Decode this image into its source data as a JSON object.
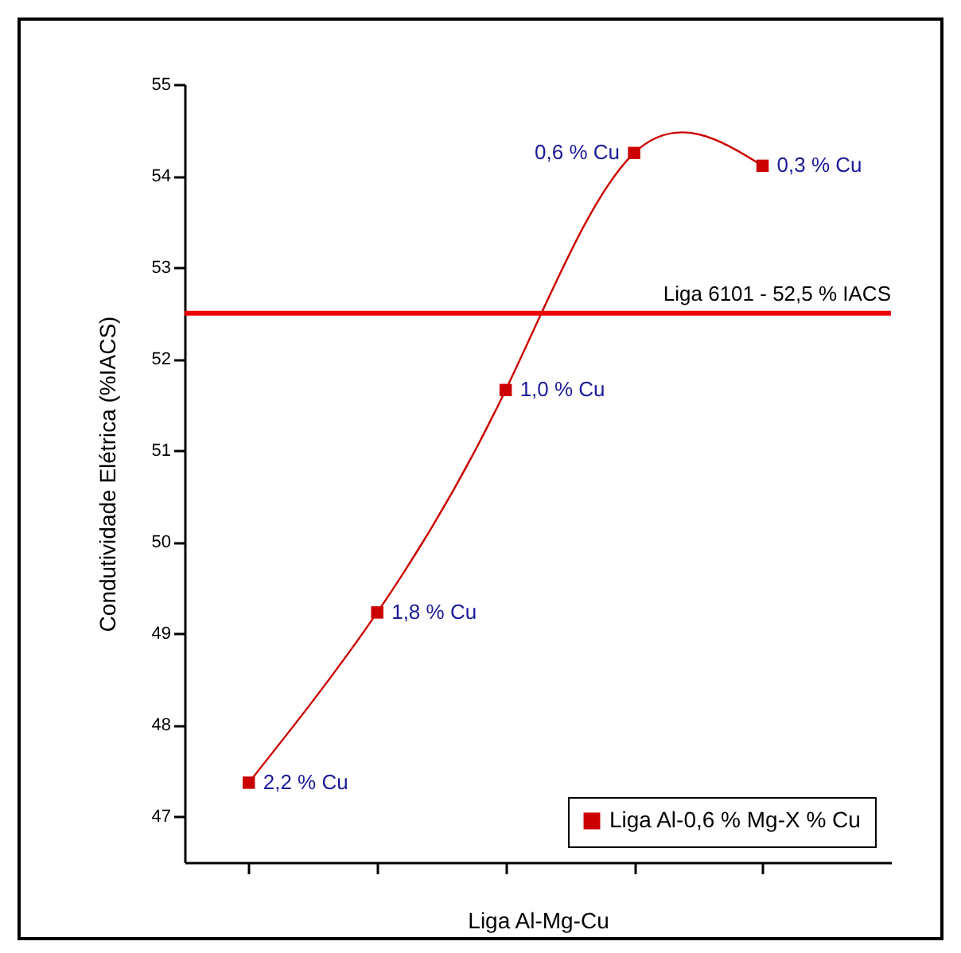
{
  "chart_data": {
    "type": "line",
    "xlabel": "Liga Al-Mg-Cu",
    "ylabel": "Condutividade Elétrica (%IACS)",
    "categories": [
      null,
      null,
      null,
      null,
      null
    ],
    "series": [
      {
        "name": "Liga Al-0,6 % Mg-X % Cu",
        "color": "#cc0000",
        "values": [
          47.37,
          49.23,
          51.66,
          54.25,
          54.11
        ]
      }
    ],
    "annotations": [
      "2,2 % Cu",
      "1,8 % Cu",
      "1,0 % Cu",
      "0,6 % Cu",
      "0,3 % Cu"
    ],
    "ylim": [
      46.5,
      55
    ],
    "yticks": [
      47,
      48,
      49,
      50,
      51,
      52,
      53,
      54,
      55
    ],
    "ref_lines": [
      {
        "axis": "y",
        "value": 52.5,
        "label": "Liga 6101 - 52,5 % IACS",
        "color": "#ee0000"
      }
    ],
    "tick_labels": "y",
    "marker": "square",
    "legend": "bottom right",
    "grid": false
  }
}
